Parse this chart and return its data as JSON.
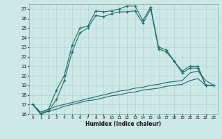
{
  "xlabel": "Humidex (Indice chaleur)",
  "bg_color": "#cde8e6",
  "grid_color": "#aacfcc",
  "line_color": "#1a6b6b",
  "xlim": [
    -0.5,
    23.5
  ],
  "ylim": [
    16,
    27.5
  ],
  "yticks": [
    16,
    17,
    18,
    19,
    20,
    21,
    22,
    23,
    24,
    25,
    26,
    27
  ],
  "xticks": [
    0,
    1,
    2,
    3,
    4,
    5,
    6,
    7,
    8,
    9,
    10,
    11,
    12,
    13,
    14,
    15,
    16,
    17,
    18,
    19,
    20,
    21,
    22,
    23
  ],
  "series1_x": [
    0,
    1,
    2,
    3,
    4,
    5,
    6,
    7,
    8,
    9,
    10,
    11,
    12,
    13,
    14,
    15,
    16,
    17,
    18,
    19,
    20,
    21,
    22,
    23
  ],
  "series1_y": [
    17.0,
    16.0,
    16.5,
    18.5,
    20.0,
    23.2,
    25.0,
    25.2,
    26.8,
    26.7,
    26.8,
    27.0,
    27.3,
    27.3,
    25.8,
    27.2,
    23.0,
    22.7,
    21.5,
    20.5,
    21.0,
    21.0,
    19.0,
    19.0
  ],
  "series2_x": [
    0,
    1,
    2,
    3,
    4,
    5,
    6,
    7,
    8,
    9,
    10,
    11,
    12,
    13,
    14,
    15,
    16,
    17,
    18,
    19,
    20,
    21,
    22,
    23
  ],
  "series2_y": [
    17.0,
    16.0,
    16.3,
    17.5,
    19.5,
    22.5,
    24.5,
    25.0,
    26.3,
    26.2,
    26.5,
    26.7,
    26.7,
    26.8,
    25.5,
    27.0,
    22.8,
    22.5,
    21.5,
    20.3,
    20.8,
    20.8,
    19.0,
    19.0
  ],
  "series3_x": [
    0,
    1,
    2,
    3,
    4,
    5,
    6,
    7,
    8,
    9,
    10,
    11,
    12,
    13,
    14,
    15,
    16,
    17,
    18,
    19,
    20,
    21,
    22,
    23
  ],
  "series3_y": [
    17.0,
    16.2,
    16.5,
    16.8,
    17.0,
    17.2,
    17.4,
    17.6,
    17.8,
    18.0,
    18.2,
    18.4,
    18.5,
    18.7,
    18.8,
    19.0,
    19.1,
    19.3,
    19.4,
    19.5,
    20.3,
    20.5,
    19.5,
    19.0
  ],
  "series4_x": [
    0,
    1,
    2,
    3,
    4,
    5,
    6,
    7,
    8,
    9,
    10,
    11,
    12,
    13,
    14,
    15,
    16,
    17,
    18,
    19,
    20,
    21,
    22,
    23
  ],
  "series4_y": [
    17.0,
    16.0,
    16.3,
    16.5,
    16.8,
    17.0,
    17.2,
    17.4,
    17.5,
    17.7,
    17.9,
    18.0,
    18.2,
    18.3,
    18.5,
    18.6,
    18.7,
    18.9,
    19.0,
    19.1,
    19.5,
    19.7,
    19.0,
    19.0
  ]
}
